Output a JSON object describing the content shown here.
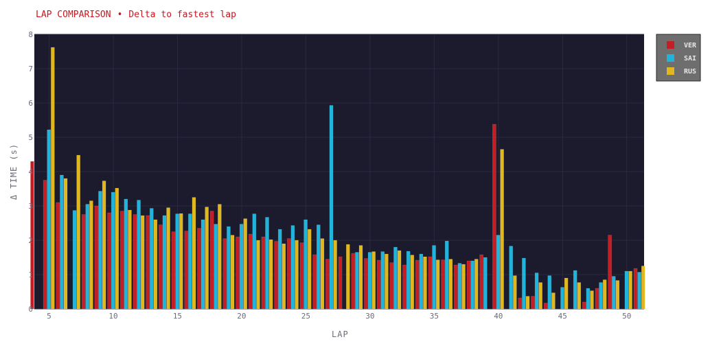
{
  "colors": {
    "plot_bg": "#1b1b2d",
    "legend_bg": "#6e6e6e",
    "title": "#c8161d",
    "grid": "#2a2a3e"
  },
  "chart_data": {
    "type": "bar",
    "title": "LAP COMPARISON",
    "separator": "•",
    "subtitle": "Delta to fastest lap",
    "xlabel": "LAP",
    "ylabel": "Δ TIME (s)",
    "ylim": [
      0,
      8
    ],
    "y_ticks": [
      0,
      1,
      2,
      3,
      4,
      5,
      6,
      7,
      8
    ],
    "x_ticks": [
      5,
      10,
      15,
      20,
      25,
      30,
      35,
      40,
      45,
      50
    ],
    "legend_position": "top-right",
    "grid": true,
    "x": [
      4,
      5,
      6,
      7,
      8,
      9,
      10,
      11,
      12,
      13,
      14,
      15,
      16,
      17,
      18,
      19,
      20,
      21,
      22,
      23,
      24,
      25,
      26,
      27,
      28,
      29,
      30,
      31,
      32,
      33,
      34,
      35,
      36,
      37,
      38,
      39,
      40,
      41,
      42,
      43,
      44,
      45,
      46,
      47,
      48,
      49,
      50,
      51
    ],
    "series": [
      {
        "name": "VER",
        "color": "#c41e24",
        "values": [
          4.3,
          3.75,
          3.1,
          null,
          2.75,
          3.0,
          2.8,
          2.85,
          2.75,
          2.72,
          2.45,
          2.25,
          2.27,
          2.35,
          2.85,
          2.05,
          2.1,
          2.18,
          2.1,
          1.97,
          2.05,
          1.93,
          1.58,
          1.45,
          1.52,
          1.62,
          1.47,
          1.42,
          1.35,
          1.28,
          1.42,
          1.52,
          1.43,
          1.28,
          1.4,
          1.58,
          5.38,
          null,
          0.32,
          0.37,
          0.17,
          null,
          null,
          0.2,
          0.6,
          2.15,
          null,
          1.18
        ]
      },
      {
        "name": "SAI",
        "color": "#1eb4dc",
        "values": [
          null,
          5.22,
          3.9,
          2.87,
          3.05,
          3.43,
          3.4,
          3.2,
          3.17,
          2.93,
          2.72,
          2.77,
          2.77,
          2.6,
          2.47,
          2.4,
          2.47,
          2.77,
          2.67,
          2.32,
          2.43,
          2.6,
          2.45,
          5.93,
          null,
          1.65,
          1.65,
          1.67,
          1.8,
          1.68,
          1.6,
          1.85,
          1.98,
          1.33,
          1.4,
          1.5,
          2.15,
          1.83,
          1.48,
          1.05,
          0.97,
          0.63,
          1.12,
          0.6,
          0.77,
          0.95,
          1.1,
          1.07
        ]
      },
      {
        "name": "RUS",
        "color": "#e0b81e",
        "values": [
          null,
          7.62,
          3.8,
          4.48,
          3.15,
          3.73,
          3.52,
          2.88,
          2.72,
          2.6,
          2.95,
          2.78,
          3.25,
          2.97,
          3.05,
          2.15,
          2.63,
          2.0,
          2.02,
          1.9,
          2.0,
          2.32,
          2.05,
          2.0,
          1.88,
          1.85,
          1.67,
          1.6,
          1.7,
          1.57,
          1.52,
          1.43,
          1.45,
          1.3,
          1.45,
          null,
          4.65,
          0.97,
          0.37,
          0.77,
          0.47,
          0.9,
          0.77,
          0.53,
          0.85,
          0.83,
          1.1,
          1.25
        ]
      }
    ]
  }
}
